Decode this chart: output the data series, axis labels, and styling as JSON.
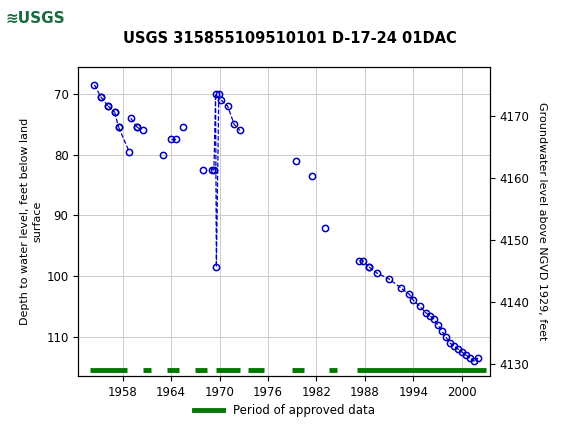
{
  "title": "USGS 315855109510101 D-17-24 01DAC",
  "ylabel_left": "Depth to water level, feet below land\nsurface",
  "ylabel_right": "Groundwater level above NGVD 1929, feet",
  "ylim_left": [
    116.5,
    65.5
  ],
  "ylim_right": [
    4128,
    4178
  ],
  "yticks_left": [
    70,
    80,
    90,
    100,
    110
  ],
  "yticks_right": [
    4130,
    4140,
    4150,
    4160,
    4170
  ],
  "xlim": [
    1952.5,
    2003.5
  ],
  "xticks": [
    1958,
    1964,
    1970,
    1976,
    1982,
    1988,
    1994,
    2000
  ],
  "segments": [
    [
      [
        1954.5,
        68.5
      ],
      [
        1955.3,
        70.5
      ]
    ],
    [
      [
        1955.3,
        70.5
      ],
      [
        1956.2,
        72.0
      ]
    ],
    [
      [
        1956.2,
        72.0
      ],
      [
        1957.0,
        73.0
      ]
    ],
    [
      [
        1957.0,
        73.0
      ],
      [
        1957.5,
        75.5
      ]
    ],
    [
      [
        1957.5,
        75.5
      ],
      [
        1958.8,
        79.5
      ]
    ],
    [
      [
        1959.0,
        74.0
      ],
      [
        1959.8,
        75.5
      ]
    ],
    [
      [
        1959.8,
        75.5
      ],
      [
        1960.5,
        76.0
      ]
    ],
    [
      [
        1963.0,
        80.0
      ]
    ],
    [
      [
        1964.0,
        77.5
      ],
      [
        1964.6,
        77.5
      ]
    ],
    [
      [
        1965.5,
        75.5
      ]
    ],
    [
      [
        1968.0,
        82.5
      ]
    ],
    [
      [
        1969.0,
        82.5
      ],
      [
        1969.3,
        82.5
      ],
      [
        1969.5,
        70.0
      ],
      [
        1969.6,
        98.5
      ],
      [
        1969.9,
        70.0
      ]
    ],
    [
      [
        1970.2,
        71.0
      ],
      [
        1971.0,
        72.0
      ],
      [
        1971.8,
        75.0
      ],
      [
        1972.5,
        76.0
      ]
    ],
    [
      [
        1979.5,
        81.0
      ]
    ],
    [
      [
        1981.5,
        83.5
      ]
    ],
    [
      [
        1983.0,
        92.0
      ]
    ],
    [
      [
        1987.3,
        97.5
      ],
      [
        1987.8,
        97.5
      ],
      [
        1988.5,
        98.5
      ]
    ],
    [
      [
        1988.5,
        98.5
      ],
      [
        1989.5,
        99.5
      ],
      [
        1991.0,
        100.5
      ],
      [
        1992.5,
        102.0
      ],
      [
        1993.5,
        103.0
      ],
      [
        1994.0,
        104.0
      ],
      [
        1994.8,
        105.0
      ],
      [
        1995.5,
        106.0
      ],
      [
        1996.0,
        106.5
      ],
      [
        1996.5,
        107.0
      ],
      [
        1997.0,
        108.0
      ],
      [
        1997.5,
        109.0
      ],
      [
        1998.0,
        110.0
      ],
      [
        1998.5,
        111.0
      ],
      [
        1999.0,
        111.5
      ],
      [
        1999.5,
        112.0
      ],
      [
        2000.0,
        112.5
      ],
      [
        2000.5,
        113.0
      ],
      [
        2001.0,
        113.5
      ],
      [
        2001.5,
        114.0
      ],
      [
        2002.0,
        113.5
      ]
    ]
  ],
  "isolated_points": [
    [
      1963.0,
      80.0
    ],
    [
      1965.5,
      75.5
    ],
    [
      1968.0,
      82.5
    ],
    [
      1979.5,
      81.0
    ],
    [
      1981.5,
      83.5
    ],
    [
      1983.0,
      92.0
    ]
  ],
  "line_color": "#0000bb",
  "marker_color": "#0000bb",
  "approved_segments_x": [
    [
      1954.0,
      1958.5
    ],
    [
      1960.5,
      1961.5
    ],
    [
      1963.5,
      1965.0
    ],
    [
      1967.0,
      1968.5
    ],
    [
      1969.5,
      1972.5
    ],
    [
      1973.5,
      1975.5
    ],
    [
      1979.0,
      1980.5
    ],
    [
      1983.5,
      1984.5
    ],
    [
      1987.0,
      2003.0
    ]
  ],
  "approved_color": "#007700",
  "approved_y_depth": 115.5,
  "legend_label": "Period of approved data",
  "background_color": "#ffffff",
  "header_color": "#1a6b3c",
  "grid_color": "#cccccc"
}
